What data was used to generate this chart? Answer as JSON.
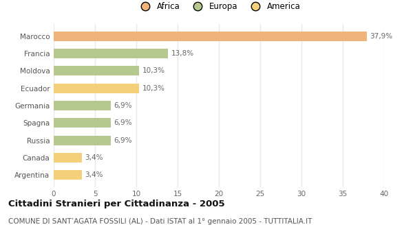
{
  "categories": [
    "Argentina",
    "Canada",
    "Russia",
    "Spagna",
    "Germania",
    "Ecuador",
    "Moldova",
    "Francia",
    "Marocco"
  ],
  "values": [
    3.4,
    3.4,
    6.9,
    6.9,
    6.9,
    10.3,
    10.3,
    13.8,
    37.9
  ],
  "colors": [
    "#f5d07a",
    "#f5d07a",
    "#b5c98e",
    "#b5c98e",
    "#b5c98e",
    "#f5d07a",
    "#b5c98e",
    "#b5c98e",
    "#f0b47a"
  ],
  "labels": [
    "3,4%",
    "3,4%",
    "6,9%",
    "6,9%",
    "6,9%",
    "10,3%",
    "10,3%",
    "13,8%",
    "37,9%"
  ],
  "legend": [
    {
      "label": "Africa",
      "color": "#f0b47a"
    },
    {
      "label": "Europa",
      "color": "#b5c98e"
    },
    {
      "label": "America",
      "color": "#f5d07a"
    }
  ],
  "title": "Cittadini Stranieri per Cittadinanza - 2005",
  "subtitle": "COMUNE DI SANT’AGATA FOSSILI (AL) - Dati ISTAT al 1° gennaio 2005 - TUTTITALIA.IT",
  "xlim": [
    0,
    40
  ],
  "xticks": [
    0,
    5,
    10,
    15,
    20,
    25,
    30,
    35,
    40
  ],
  "background_color": "#ffffff",
  "grid_color": "#e8e8e8",
  "title_fontsize": 9.5,
  "subtitle_fontsize": 7.5,
  "label_fontsize": 7.5,
  "tick_fontsize": 7.5,
  "legend_fontsize": 8.5
}
